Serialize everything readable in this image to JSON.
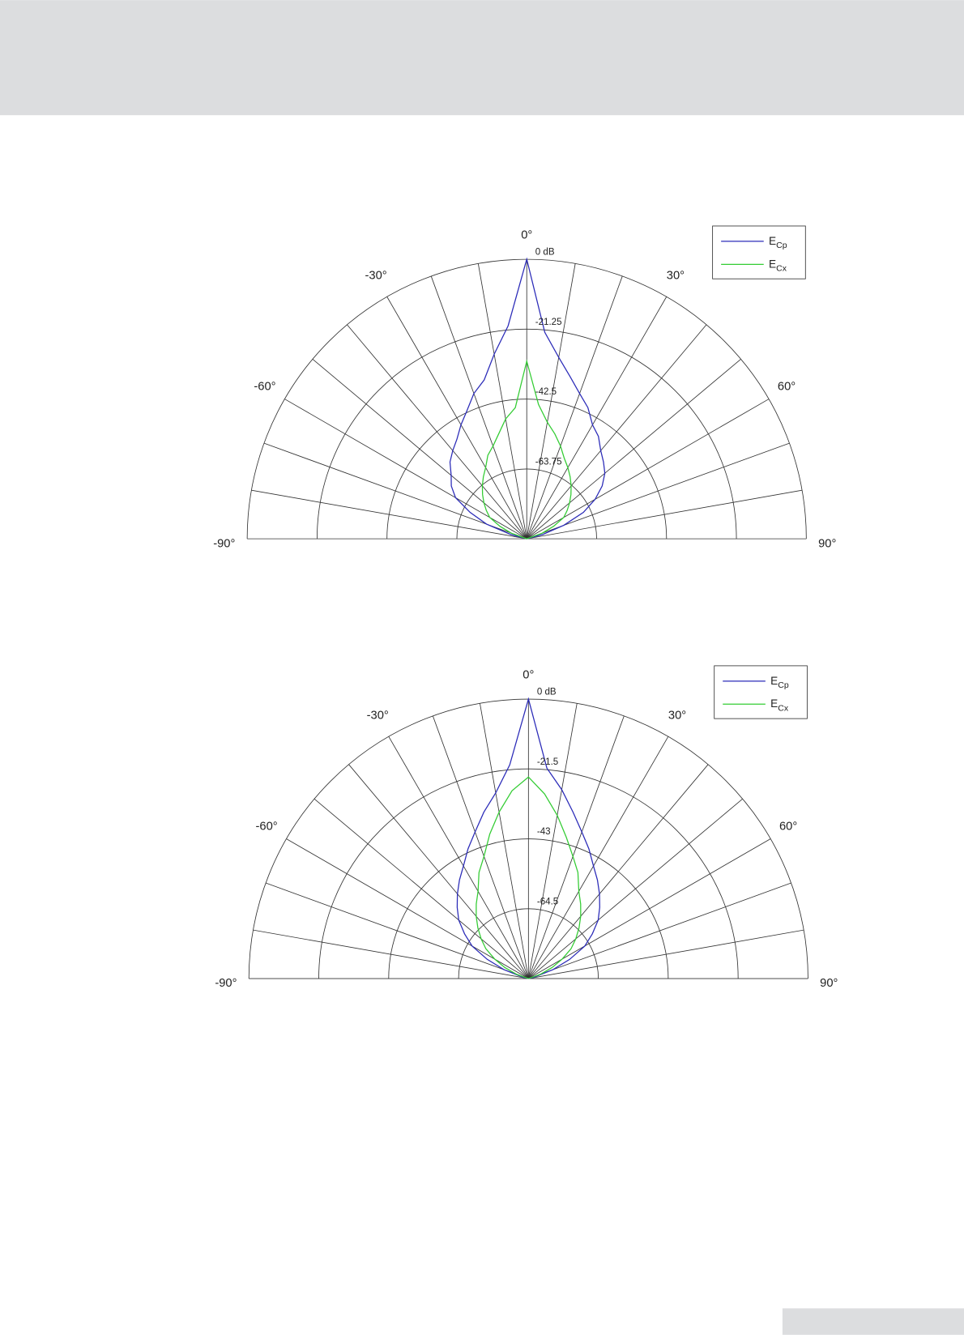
{
  "chart_data": [
    {
      "type": "polar",
      "thetalim": [
        -90,
        90
      ],
      "rlim": [
        -85,
        0
      ],
      "theta": [
        -90,
        -85,
        -80,
        -75,
        -70,
        -65,
        -60,
        -55,
        -50,
        -45,
        -40,
        -35,
        -30,
        -25,
        -20,
        -15,
        -10,
        -5,
        0,
        5,
        10,
        15,
        20,
        25,
        30,
        35,
        40,
        45,
        50,
        55,
        60,
        65,
        70,
        75,
        80,
        85,
        90
      ],
      "theta_grid": [
        -90,
        -80,
        -70,
        -60,
        -50,
        -40,
        -30,
        -20,
        -10,
        0,
        10,
        20,
        30,
        40,
        50,
        60,
        70,
        80,
        90
      ],
      "thetaticks": [
        {
          "value": -90,
          "label": "-90°"
        },
        {
          "value": -60,
          "label": "-60°"
        },
        {
          "value": -30,
          "label": "-30°"
        },
        {
          "value": 0,
          "label": "0°"
        },
        {
          "value": 30,
          "label": "30°"
        },
        {
          "value": 60,
          "label": "60°"
        },
        {
          "value": 90,
          "label": "90°"
        }
      ],
      "rticks": [
        {
          "value": 0,
          "label": "0 dB"
        },
        -21.25,
        -42.5,
        -63.75
      ],
      "legend": "upper right",
      "series": [
        {
          "name": "ECp",
          "color": "#2b2bb8",
          "values": [
            -85,
            -85,
            -85,
            -80,
            -72,
            -66,
            -60,
            -57,
            -55,
            -52,
            -50,
            -48,
            -45,
            -42,
            -38,
            -35,
            -28,
            -20,
            0,
            -22,
            -29,
            -34,
            -38,
            -41,
            -45,
            -47,
            -50,
            -52,
            -54,
            -57,
            -61,
            -66,
            -73,
            -80,
            -85,
            -85,
            -85
          ]
        },
        {
          "name": "ECx",
          "color": "#33cc33",
          "values": [
            -85,
            -85,
            -85,
            -85,
            -80,
            -76,
            -72,
            -70,
            -68,
            -66,
            -64,
            -62,
            -60,
            -57,
            -55,
            -52,
            -48,
            -45,
            -31,
            -44,
            -49,
            -52,
            -55,
            -58,
            -60,
            -62,
            -64,
            -66,
            -68,
            -70,
            -72,
            -76,
            -80,
            -85,
            -85,
            -85,
            -85
          ]
        }
      ]
    },
    {
      "type": "polar",
      "thetalim": [
        -90,
        90
      ],
      "rlim": [
        -86,
        0
      ],
      "theta": [
        -90,
        -85,
        -80,
        -75,
        -70,
        -65,
        -60,
        -55,
        -50,
        -45,
        -40,
        -35,
        -30,
        -25,
        -20,
        -15,
        -10,
        -5,
        0,
        5,
        10,
        15,
        20,
        25,
        30,
        35,
        40,
        45,
        50,
        55,
        60,
        65,
        70,
        75,
        80,
        85,
        90
      ],
      "theta_grid": [
        -90,
        -80,
        -70,
        -60,
        -50,
        -40,
        -30,
        -20,
        -10,
        0,
        10,
        20,
        30,
        40,
        50,
        60,
        70,
        80,
        90
      ],
      "thetaticks": [
        {
          "value": -90,
          "label": "-90°"
        },
        {
          "value": -60,
          "label": "-60°"
        },
        {
          "value": -30,
          "label": "-30°"
        },
        {
          "value": 0,
          "label": "0°"
        },
        {
          "value": 30,
          "label": "30°"
        },
        {
          "value": 60,
          "label": "60°"
        },
        {
          "value": 90,
          "label": "90°"
        }
      ],
      "rticks": [
        {
          "value": 0,
          "label": "0 dB"
        },
        -21.5,
        -43,
        -64.5
      ],
      "legend": "upper right",
      "series": [
        {
          "name": "ECp",
          "color": "#2b2bb8",
          "values": [
            -86,
            -86,
            -86,
            -84,
            -78,
            -72,
            -66,
            -62,
            -58,
            -55,
            -52,
            -49,
            -46,
            -42,
            -38,
            -33,
            -28,
            -20,
            0,
            -21,
            -27,
            -33,
            -38,
            -42,
            -46,
            -49,
            -52,
            -55,
            -58,
            -62,
            -66,
            -72,
            -78,
            -84,
            -86,
            -86,
            -86
          ]
        },
        {
          "name": "ECx",
          "color": "#33cc33",
          "values": [
            -86,
            -86,
            -86,
            -86,
            -82,
            -78,
            -74,
            -70,
            -67,
            -64,
            -61,
            -58,
            -55,
            -50,
            -46,
            -40,
            -34,
            -28,
            -24,
            -29,
            -35,
            -41,
            -46,
            -50,
            -55,
            -58,
            -61,
            -64,
            -67,
            -70,
            -74,
            -78,
            -82,
            -86,
            -86,
            -86,
            -86
          ]
        }
      ]
    }
  ]
}
